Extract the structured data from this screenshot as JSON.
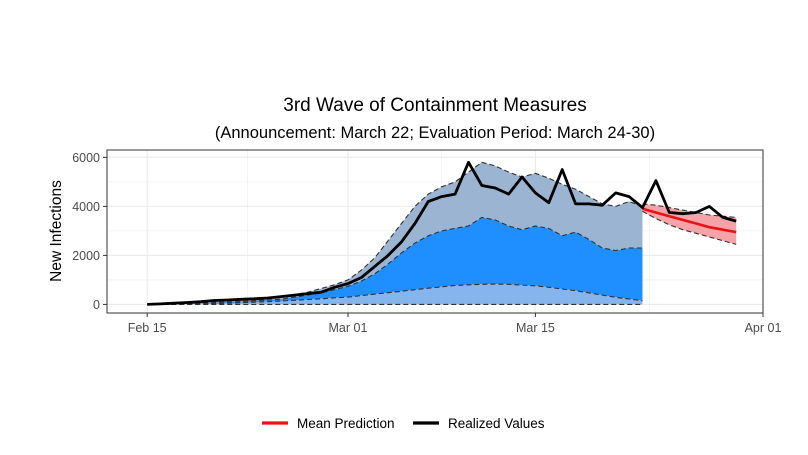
{
  "chart_data": {
    "type": "area",
    "title": "3rd Wave of Containment Measures",
    "subtitle": "(Announcement: March 22; Evaluation Period: March 24-30)",
    "xlabel": "",
    "ylabel": "New Infections",
    "x_axis": {
      "type": "date",
      "range": [
        "2020-02-12",
        "2020-04-01"
      ],
      "ticks": [
        {
          "date": "2020-02-15",
          "label": "Feb 15"
        },
        {
          "date": "2020-03-01",
          "label": "Mar 01"
        },
        {
          "date": "2020-03-15",
          "label": "Mar 15"
        },
        {
          "date": "2020-04-01",
          "label": "Apr 01"
        }
      ]
    },
    "y_axis": {
      "range": [
        -350,
        6300
      ],
      "ticks": [
        0,
        2000,
        4000,
        6000
      ]
    },
    "grid": true,
    "legend_position": "bottom",
    "legend": [
      {
        "label": "Mean Prediction",
        "color": "#ee1111"
      },
      {
        "label": "Realized Values",
        "color": "#000000"
      }
    ],
    "colors": {
      "band_outer": "#9bb4d1",
      "band_mid": "#1f8fff",
      "band_inner": "#86b4ec",
      "forecast_band": "#f4a4a8",
      "mean_line": "#ee1111",
      "realized_line": "#000000",
      "dashed_bounds": "#333333",
      "panel_border": "#333333",
      "grid": "#ebebeb"
    },
    "dates_fit": [
      "2020-02-15",
      "2020-02-16",
      "2020-02-17",
      "2020-02-18",
      "2020-02-19",
      "2020-02-20",
      "2020-02-21",
      "2020-02-22",
      "2020-02-23",
      "2020-02-24",
      "2020-02-25",
      "2020-02-26",
      "2020-02-27",
      "2020-02-28",
      "2020-02-29",
      "2020-03-01",
      "2020-03-02",
      "2020-03-03",
      "2020-03-04",
      "2020-03-05",
      "2020-03-06",
      "2020-03-07",
      "2020-03-08",
      "2020-03-09",
      "2020-03-10",
      "2020-03-11",
      "2020-03-12",
      "2020-03-13",
      "2020-03-14",
      "2020-03-15",
      "2020-03-16",
      "2020-03-17",
      "2020-03-18",
      "2020-03-19",
      "2020-03-20",
      "2020-03-21",
      "2020-03-22",
      "2020-03-23"
    ],
    "band_upper": [
      0,
      10,
      20,
      40,
      65,
      120,
      150,
      200,
      220,
      250,
      320,
      400,
      500,
      650,
      800,
      1000,
      1400,
      1900,
      2600,
      3300,
      4000,
      4500,
      4800,
      5000,
      5400,
      5800,
      5650,
      5400,
      5200,
      5350,
      5150,
      4900,
      4700,
      4400,
      4100,
      4000,
      4200,
      4000
    ],
    "band_mid_upper": [
      0,
      5,
      10,
      25,
      40,
      70,
      100,
      120,
      150,
      180,
      210,
      300,
      380,
      470,
      600,
      740,
      950,
      1250,
      1650,
      2100,
      2500,
      2800,
      3000,
      3100,
      3200,
      3550,
      3450,
      3200,
      3050,
      3200,
      3100,
      2800,
      2950,
      2650,
      2300,
      2200,
      2300,
      2300
    ],
    "band_lower": [
      0,
      0,
      5,
      10,
      20,
      35,
      50,
      70,
      90,
      110,
      140,
      170,
      200,
      230,
      270,
      300,
      360,
      420,
      480,
      540,
      600,
      660,
      720,
      770,
      800,
      820,
      830,
      820,
      790,
      760,
      700,
      630,
      560,
      470,
      380,
      290,
      220,
      150
    ],
    "lower_bound": [
      0,
      0,
      0,
      0,
      0,
      0,
      0,
      0,
      0,
      0,
      0,
      0,
      0,
      0,
      0,
      0,
      0,
      0,
      0,
      0,
      0,
      0,
      0,
      0,
      0,
      0,
      0,
      0,
      0,
      0,
      0,
      0,
      0,
      0,
      0,
      0,
      0,
      0
    ],
    "realized_dates": [
      "2020-02-15",
      "2020-02-16",
      "2020-02-17",
      "2020-02-18",
      "2020-02-19",
      "2020-02-20",
      "2020-02-21",
      "2020-02-22",
      "2020-02-23",
      "2020-02-24",
      "2020-02-25",
      "2020-02-26",
      "2020-02-27",
      "2020-02-28",
      "2020-02-29",
      "2020-03-01",
      "2020-03-02",
      "2020-03-03",
      "2020-03-04",
      "2020-03-05",
      "2020-03-06",
      "2020-03-07",
      "2020-03-08",
      "2020-03-09",
      "2020-03-10",
      "2020-03-11",
      "2020-03-12",
      "2020-03-13",
      "2020-03-14",
      "2020-03-15",
      "2020-03-16",
      "2020-03-17",
      "2020-03-18",
      "2020-03-19",
      "2020-03-20",
      "2020-03-21",
      "2020-03-22",
      "2020-03-23",
      "2020-03-24",
      "2020-03-25",
      "2020-03-26",
      "2020-03-27",
      "2020-03-28",
      "2020-03-29",
      "2020-03-30"
    ],
    "realized": [
      0,
      20,
      50,
      80,
      110,
      160,
      180,
      210,
      230,
      260,
      320,
      380,
      440,
      500,
      700,
      850,
      1100,
      1550,
      2000,
      2550,
      3300,
      4200,
      4400,
      4500,
      5800,
      4850,
      4750,
      4500,
      5200,
      4550,
      4150,
      5500,
      4100,
      4100,
      4050,
      4550,
      4400,
      3950,
      5050,
      3750,
      3700,
      3750,
      4000,
      3550,
      3400
    ],
    "forecast_dates": [
      "2020-03-23",
      "2020-03-24",
      "2020-03-25",
      "2020-03-26",
      "2020-03-27",
      "2020-03-28",
      "2020-03-29",
      "2020-03-30"
    ],
    "forecast_mean": [
      3900,
      3750,
      3600,
      3450,
      3300,
      3150,
      3050,
      2950
    ],
    "forecast_upper": [
      4100,
      4050,
      3950,
      3850,
      3750,
      3650,
      3600,
      3550
    ],
    "forecast_lower": [
      3800,
      3500,
      3250,
      3050,
      2900,
      2750,
      2600,
      2450
    ]
  }
}
